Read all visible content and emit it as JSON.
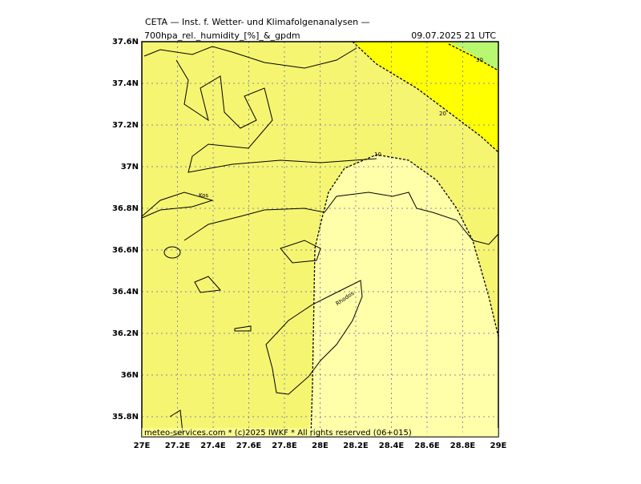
{
  "header": {
    "title": "CETA — Inst. f. Wetter- und Klimafolgenanalysen —",
    "parameter": "700hpa_rel._humidity_[%]_&_gpdm",
    "valid": "09.07.2025 21 UTC"
  },
  "footer": "meteo-services.com * (c)2025 IWKF * All rights reserved (06+015)",
  "lat_ticks": [
    {
      "value": 37.6,
      "label": "37.6N"
    },
    {
      "value": 37.4,
      "label": "37.4N"
    },
    {
      "value": 37.2,
      "label": "37.2N"
    },
    {
      "value": 37,
      "label": "37N"
    },
    {
      "value": 36.8,
      "label": "36.8N"
    },
    {
      "value": 36.6,
      "label": "36.6N"
    },
    {
      "value": 36.4,
      "label": "36.4N"
    },
    {
      "value": 36.2,
      "label": "36.2N"
    },
    {
      "value": 36,
      "label": "36N"
    },
    {
      "value": 35.8,
      "label": "35.8N"
    }
  ],
  "lon_ticks": [
    {
      "value": 27,
      "label": "27E"
    },
    {
      "value": 27.2,
      "label": "27.2E"
    },
    {
      "value": 27.4,
      "label": "27.4E"
    },
    {
      "value": 27.6,
      "label": "27.6E"
    },
    {
      "value": 27.8,
      "label": "27.8E"
    },
    {
      "value": 28,
      "label": "28E"
    },
    {
      "value": 28.2,
      "label": "28.2E"
    },
    {
      "value": 28.4,
      "label": "28.4E"
    },
    {
      "value": 28.6,
      "label": "28.6E"
    },
    {
      "value": 28.8,
      "label": "28.8E"
    },
    {
      "value": 29,
      "label": "29E"
    }
  ],
  "contours": [
    10,
    20,
    30
  ],
  "places": [
    "Kos",
    "Rhodos"
  ]
}
